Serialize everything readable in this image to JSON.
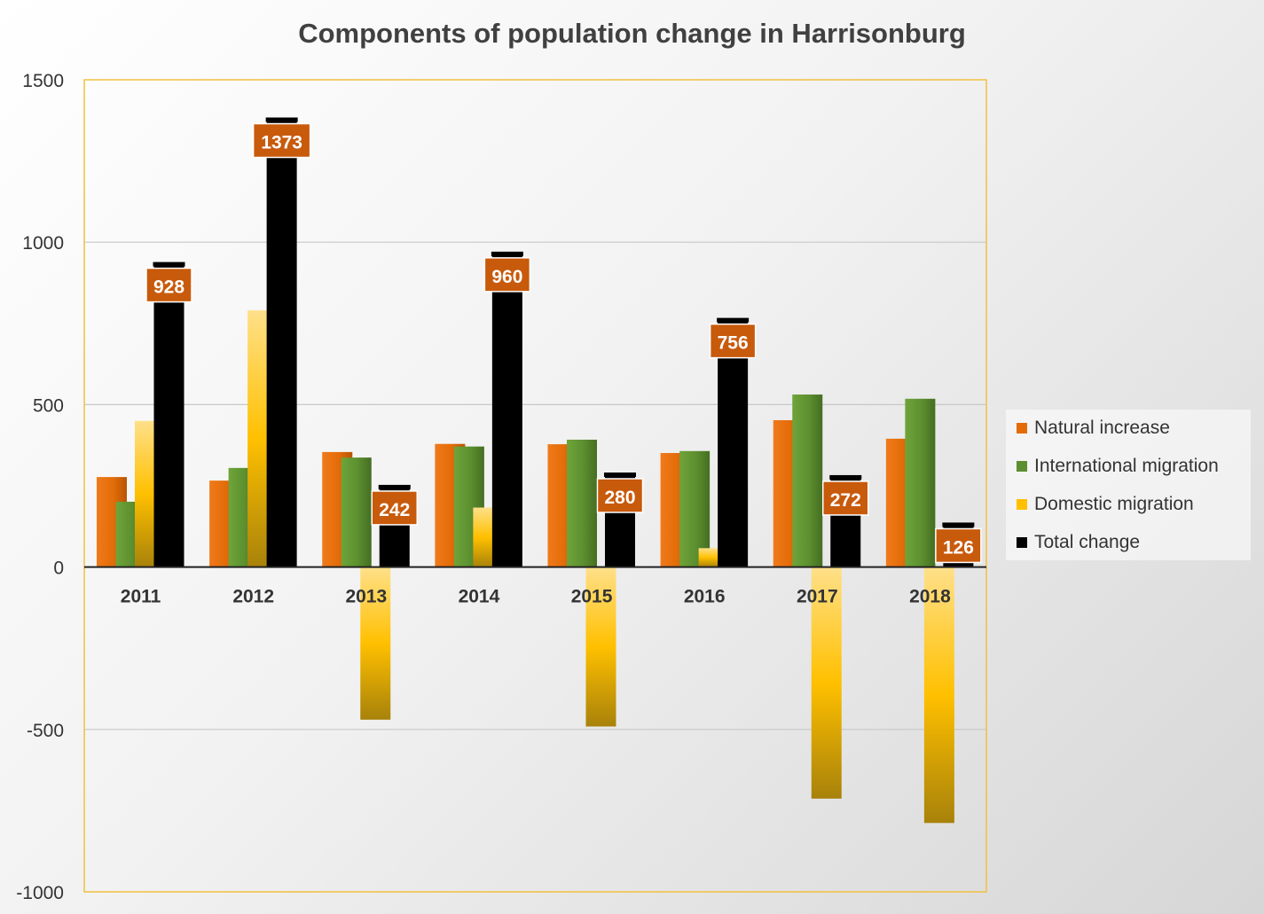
{
  "chart_data": {
    "type": "bar",
    "title": "Components of population change in Harrisonburg",
    "xlabel": "",
    "ylabel": "",
    "ylim": [
      -1000,
      1500
    ],
    "yticks": [
      -1000,
      -500,
      0,
      500,
      1000,
      1500
    ],
    "ytick_labels": [
      "-1000",
      "-500",
      "0",
      "500",
      "1000",
      "1500"
    ],
    "categories": [
      "2011",
      "2012",
      "2013",
      "2014",
      "2015",
      "2016",
      "2017",
      "2018"
    ],
    "series": [
      {
        "name": "Natural increase",
        "color": "#e36c09",
        "values": [
          277,
          266,
          354,
          379,
          378,
          351,
          452,
          395
        ]
      },
      {
        "name": "International migration",
        "color": "#5c8f2f",
        "values": [
          201,
          305,
          337,
          371,
          392,
          357,
          531,
          518
        ]
      },
      {
        "name": "Domestic migration",
        "color": "#ffc000",
        "values": [
          450,
          790,
          -470,
          183,
          -491,
          58,
          -713,
          -788
        ]
      },
      {
        "name": "Total change",
        "color": "#000000",
        "values": [
          928,
          1373,
          242,
          960,
          280,
          756,
          272,
          126
        ]
      }
    ],
    "data_labels": [
      "928",
      "1373",
      "242",
      "960",
      "280",
      "756",
      "272",
      "126"
    ],
    "legend_position": "right",
    "grid": true
  }
}
